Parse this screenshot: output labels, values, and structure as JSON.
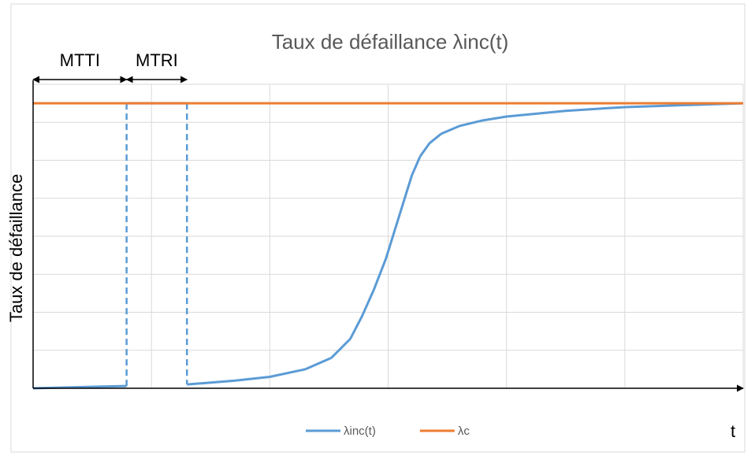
{
  "chart_data": {
    "type": "line",
    "title": "Taux de défaillance λinc(t)",
    "y_label": "Taux de défaillance",
    "x_label": "t",
    "xlim": [
      0,
      6
    ],
    "ylim": [
      0,
      8
    ],
    "xticks": [
      0,
      1,
      2,
      3,
      4,
      5,
      6
    ],
    "yticks": [
      0,
      1,
      2,
      3,
      4,
      5,
      6,
      7,
      8
    ],
    "grid": true,
    "legend": "bottom",
    "annotations": [
      {
        "text": "MTTI",
        "x": [
          0,
          0.79
        ]
      },
      {
        "text": "MTRI",
        "x": [
          0.79,
          1.3
        ]
      }
    ],
    "series": [
      {
        "name": "λinc(t)",
        "color": "#5b9bd5",
        "x": [
          0,
          0.79,
          0.79,
          1.3,
          1.3,
          1.7,
          2.0,
          2.3,
          2.52,
          2.68,
          2.78,
          2.88,
          2.98,
          3.05,
          3.12,
          3.2,
          3.27,
          3.35,
          3.45,
          3.6,
          3.8,
          4.0,
          4.5,
          5.0,
          5.5,
          6.0
        ],
        "values": [
          0,
          0.06,
          7.5,
          7.5,
          0.1,
          0.2,
          0.3,
          0.5,
          0.8,
          1.3,
          1.9,
          2.6,
          3.4,
          4.1,
          4.8,
          5.6,
          6.1,
          6.45,
          6.7,
          6.9,
          7.05,
          7.15,
          7.3,
          7.4,
          7.45,
          7.5
        ],
        "dashed_segments": [
          1,
          3
        ]
      },
      {
        "name": "λc",
        "color": "#ed7d31",
        "x": [
          0,
          6
        ],
        "values": [
          7.5,
          7.5
        ]
      }
    ]
  }
}
